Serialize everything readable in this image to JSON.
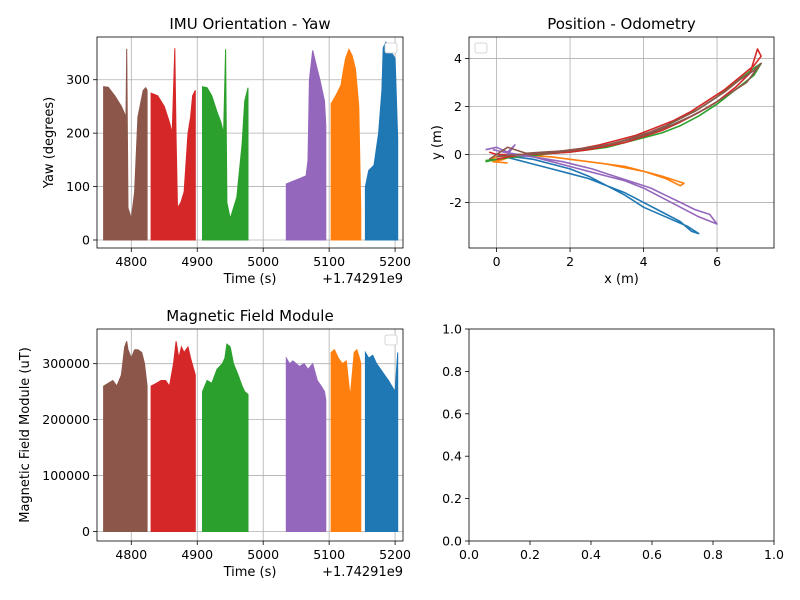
{
  "chart_data": [
    {
      "type": "area",
      "title": "IMU Orientation - Yaw",
      "xlabel": "Time (s)",
      "ylabel": "Yaw (degrees)",
      "x_offset_label": "+1.74291e9",
      "xlim": [
        4748,
        5212
      ],
      "ylim": [
        -15,
        380
      ],
      "x_ticks": [
        4800,
        4900,
        5000,
        5100,
        5200
      ],
      "y_ticks": [
        0,
        100,
        200,
        300
      ],
      "grid": true,
      "legend": "top-right",
      "series": [
        {
          "color": "#8c564b",
          "x": [
            4758,
            4765,
            4775,
            4785,
            4792,
            4793,
            4795,
            4800,
            4805,
            4810,
            4818,
            4822,
            4824
          ],
          "y": [
            287,
            286,
            270,
            250,
            230,
            358,
            60,
            40,
            90,
            230,
            280,
            285,
            280
          ]
        },
        {
          "color": "#d62728",
          "x": [
            4830,
            4840,
            4850,
            4858,
            4862,
            4866,
            4868,
            4870,
            4875,
            4880,
            4886,
            4890,
            4893,
            4897
          ],
          "y": [
            275,
            270,
            250,
            220,
            200,
            359,
            190,
            60,
            70,
            90,
            200,
            230,
            270,
            280
          ]
        },
        {
          "color": "#2ca02c",
          "x": [
            4908,
            4915,
            4922,
            4930,
            4936,
            4940,
            4943,
            4945,
            4950,
            4960,
            4968,
            4972,
            4977
          ],
          "y": [
            287,
            285,
            270,
            240,
            220,
            200,
            357,
            70,
            40,
            80,
            180,
            260,
            285
          ]
        },
        {
          "color": "#9467bd",
          "x": [
            5035,
            5045,
            5055,
            5065,
            5068,
            5070,
            5075,
            5080,
            5086,
            5093,
            5095
          ],
          "y": [
            105,
            110,
            115,
            120,
            150,
            300,
            355,
            330,
            300,
            260,
            215
          ]
        },
        {
          "color": "#ff7f0e",
          "x": [
            5103,
            5110,
            5118,
            5122,
            5125,
            5130,
            5135,
            5140,
            5145,
            5148
          ],
          "y": [
            255,
            270,
            290,
            320,
            340,
            357,
            345,
            320,
            250,
            55
          ]
        },
        {
          "color": "#1f77b4",
          "x": [
            5155,
            5160,
            5168,
            5175,
            5180,
            5182,
            5186,
            5190,
            5195,
            5200,
            5204
          ],
          "y": [
            100,
            130,
            140,
            200,
            280,
            360,
            370,
            360,
            350,
            340,
            190
          ]
        }
      ]
    },
    {
      "type": "line",
      "title": "Position - Odometry",
      "xlabel": "x (m)",
      "ylabel": "y (m)",
      "xlim": [
        -0.75,
        7.55
      ],
      "ylim": [
        -3.9,
        4.9
      ],
      "x_ticks": [
        0,
        2,
        4,
        6
      ],
      "y_ticks": [
        -2,
        0,
        2,
        4
      ],
      "grid": true,
      "legend": "top-left",
      "series": [
        {
          "color": "#1f77b4",
          "x": [
            0,
            0.5,
            1.0,
            1.5,
            2.0,
            2.5,
            3.0,
            3.5,
            4.0,
            4.5,
            5.0,
            5.3,
            5.5,
            5.2,
            4.6,
            4.0,
            3.5,
            3.0,
            2.5,
            2.0,
            1.5,
            1.0,
            0.5,
            0
          ],
          "y": [
            0,
            -0.2,
            -0.4,
            -0.6,
            -0.8,
            -1.0,
            -1.3,
            -1.6,
            -2.0,
            -2.4,
            -2.8,
            -3.2,
            -3.3,
            -3.0,
            -2.6,
            -2.2,
            -1.7,
            -1.3,
            -0.9,
            -0.6,
            -0.4,
            -0.2,
            -0.1,
            0
          ]
        },
        {
          "color": "#ff7f0e",
          "x": [
            -0.3,
            0,
            0.5,
            1.0,
            1.5,
            2.0,
            2.5,
            3.0,
            3.5,
            4.0,
            4.5,
            4.9,
            5.1,
            5.0,
            4.6,
            4.0,
            3.5,
            3.0,
            2.5,
            2.0,
            1.5,
            1.0,
            0.5,
            0.2,
            -0.1,
            0.3
          ],
          "y": [
            -0.3,
            -0.1,
            0,
            -0.05,
            -0.1,
            -0.2,
            -0.3,
            -0.4,
            -0.5,
            -0.7,
            -0.9,
            -1.1,
            -1.2,
            -1.3,
            -1.0,
            -0.7,
            -0.55,
            -0.4,
            -0.3,
            -0.2,
            -0.1,
            -0.05,
            0,
            -0.2,
            -0.3,
            -0.35
          ]
        },
        {
          "color": "#2ca02c",
          "x": [
            -0.3,
            0,
            0.5,
            1.0,
            1.5,
            2.0,
            2.5,
            3.0,
            3.5,
            4.0,
            4.5,
            5.0,
            5.5,
            6.0,
            6.5,
            7.0,
            7.2,
            7.0,
            6.5,
            6.0,
            5.5,
            5.0,
            4.5,
            4.0,
            3.5,
            3.0,
            2.5,
            2.0,
            1.5,
            1.0,
            0.5,
            0,
            -0.3
          ],
          "y": [
            -0.3,
            -0.2,
            -0.1,
            0,
            0.05,
            0.1,
            0.2,
            0.3,
            0.5,
            0.7,
            0.9,
            1.2,
            1.6,
            2.1,
            2.7,
            3.3,
            3.8,
            3.6,
            3.0,
            2.4,
            1.9,
            1.5,
            1.1,
            0.8,
            0.6,
            0.4,
            0.25,
            0.15,
            0.05,
            -0.05,
            -0.1,
            -0.2,
            -0.25
          ]
        },
        {
          "color": "#d62728",
          "x": [
            -0.2,
            0,
            0.5,
            1.0,
            1.5,
            2.0,
            2.5,
            3.0,
            3.5,
            4.0,
            4.5,
            5.0,
            5.5,
            6.0,
            6.5,
            6.9,
            7.1,
            7.2,
            7.0,
            6.6,
            6.2,
            5.8,
            5.3,
            4.8,
            4.3,
            3.8,
            3.3,
            2.8,
            2.3,
            1.8,
            1.3,
            0.8,
            0.3,
            0
          ],
          "y": [
            0.1,
            0,
            0,
            0,
            0.05,
            0.1,
            0.2,
            0.35,
            0.5,
            0.75,
            1.0,
            1.35,
            1.75,
            2.2,
            2.8,
            3.4,
            4.4,
            4.1,
            3.7,
            3.2,
            2.7,
            2.3,
            1.8,
            1.4,
            1.1,
            0.8,
            0.6,
            0.4,
            0.25,
            0.15,
            0.05,
            0,
            -0.1,
            -0.2
          ]
        },
        {
          "color": "#9467bd",
          "x": [
            -0.3,
            0,
            0.3,
            0.5,
            0.3,
            1.0,
            1.5,
            2.0,
            2.5,
            3.0,
            3.5,
            4.0,
            4.5,
            5.0,
            5.5,
            6.0,
            5.8,
            5.4,
            5.0,
            4.6,
            4.2,
            3.8,
            3.4,
            3.0,
            2.6,
            2.2,
            1.8,
            1.4,
            1.0,
            0.6,
            0.2,
            -0.1
          ],
          "y": [
            0.2,
            0.3,
            0.1,
            0.4,
            0,
            -0.1,
            -0.3,
            -0.5,
            -0.7,
            -0.9,
            -1.1,
            -1.4,
            -1.8,
            -2.2,
            -2.6,
            -2.9,
            -2.5,
            -2.3,
            -2.0,
            -1.7,
            -1.4,
            -1.2,
            -1.0,
            -0.8,
            -0.6,
            -0.45,
            -0.3,
            -0.2,
            -0.1,
            0,
            0.1,
            0.2
          ]
        },
        {
          "color": "#8c564b",
          "x": [
            -0.2,
            0.1,
            0.3,
            0.8,
            1.3,
            1.8,
            2.3,
            2.8,
            3.3,
            3.8,
            4.3,
            4.8,
            5.3,
            5.8,
            6.3,
            6.8,
            7.2,
            7.0,
            6.6,
            6.2,
            5.8,
            5.4,
            5.0,
            4.6,
            4.2,
            3.8,
            3.4,
            3.0,
            2.6,
            2.2,
            1.8,
            1.4,
            1.0,
            0.6,
            0.2,
            0
          ],
          "y": [
            -0.2,
            0.1,
            0.3,
            0.05,
            0.1,
            0.15,
            0.25,
            0.35,
            0.5,
            0.7,
            0.95,
            1.25,
            1.6,
            2.0,
            2.5,
            3.0,
            3.8,
            3.5,
            3.1,
            2.6,
            2.2,
            1.8,
            1.5,
            1.2,
            0.95,
            0.75,
            0.55,
            0.4,
            0.3,
            0.2,
            0.12,
            0.06,
            0.02,
            0,
            -0.05,
            -0.1
          ]
        }
      ]
    },
    {
      "type": "area",
      "title": "Magnetic Field Module",
      "xlabel": "Time (s)",
      "ylabel": "Magnetic Field Module (uT)",
      "x_offset_label": "+1.74291e9",
      "xlim": [
        4748,
        5212
      ],
      "ylim": [
        -17000,
        362000
      ],
      "x_ticks": [
        4800,
        4900,
        5000,
        5100,
        5200
      ],
      "y_ticks": [
        0,
        100000,
        200000,
        300000
      ],
      "grid": true,
      "legend": "top-right",
      "series": [
        {
          "color": "#8c564b",
          "x": [
            4758,
            4765,
            4772,
            4778,
            4785,
            4790,
            4793,
            4795,
            4800,
            4805,
            4810,
            4816,
            4820,
            4824
          ],
          "y": [
            260000,
            265000,
            270000,
            260000,
            280000,
            330000,
            340000,
            325000,
            310000,
            325000,
            325000,
            320000,
            300000,
            260000
          ]
        },
        {
          "color": "#d62728",
          "x": [
            4830,
            4838,
            4845,
            4852,
            4858,
            4864,
            4868,
            4872,
            4876,
            4880,
            4886,
            4890,
            4897
          ],
          "y": [
            260000,
            265000,
            270000,
            270000,
            260000,
            300000,
            340000,
            310000,
            330000,
            320000,
            330000,
            310000,
            280000
          ]
        },
        {
          "color": "#2ca02c",
          "x": [
            4908,
            4915,
            4922,
            4930,
            4938,
            4942,
            4945,
            4950,
            4955,
            4962,
            4968,
            4972,
            4977
          ],
          "y": [
            250000,
            270000,
            265000,
            290000,
            300000,
            310000,
            335000,
            330000,
            300000,
            280000,
            260000,
            250000,
            245000
          ]
        },
        {
          "color": "#9467bd",
          "x": [
            5035,
            5040,
            5045,
            5055,
            5062,
            5068,
            5075,
            5082,
            5088,
            5093,
            5095
          ],
          "y": [
            310000,
            300000,
            305000,
            295000,
            300000,
            290000,
            300000,
            270000,
            260000,
            250000,
            235000
          ]
        },
        {
          "color": "#ff7f0e",
          "x": [
            5103,
            5108,
            5114,
            5120,
            5126,
            5132,
            5138,
            5142,
            5146,
            5148
          ],
          "y": [
            320000,
            325000,
            310000,
            300000,
            305000,
            240000,
            320000,
            325000,
            310000,
            300000
          ]
        },
        {
          "color": "#1f77b4",
          "x": [
            5155,
            5160,
            5166,
            5172,
            5178,
            5184,
            5190,
            5195,
            5200,
            5204
          ],
          "y": [
            320000,
            310000,
            315000,
            300000,
            290000,
            280000,
            270000,
            260000,
            250000,
            320000
          ]
        }
      ]
    },
    {
      "type": "line",
      "title": "",
      "xlabel": "",
      "ylabel": "",
      "xlim": [
        0,
        1
      ],
      "ylim": [
        0,
        1
      ],
      "x_ticks": [
        0.0,
        0.2,
        0.4,
        0.6,
        0.8,
        1.0
      ],
      "y_ticks": [
        0.0,
        0.2,
        0.4,
        0.6,
        0.8,
        1.0
      ],
      "grid": false,
      "series": []
    }
  ]
}
